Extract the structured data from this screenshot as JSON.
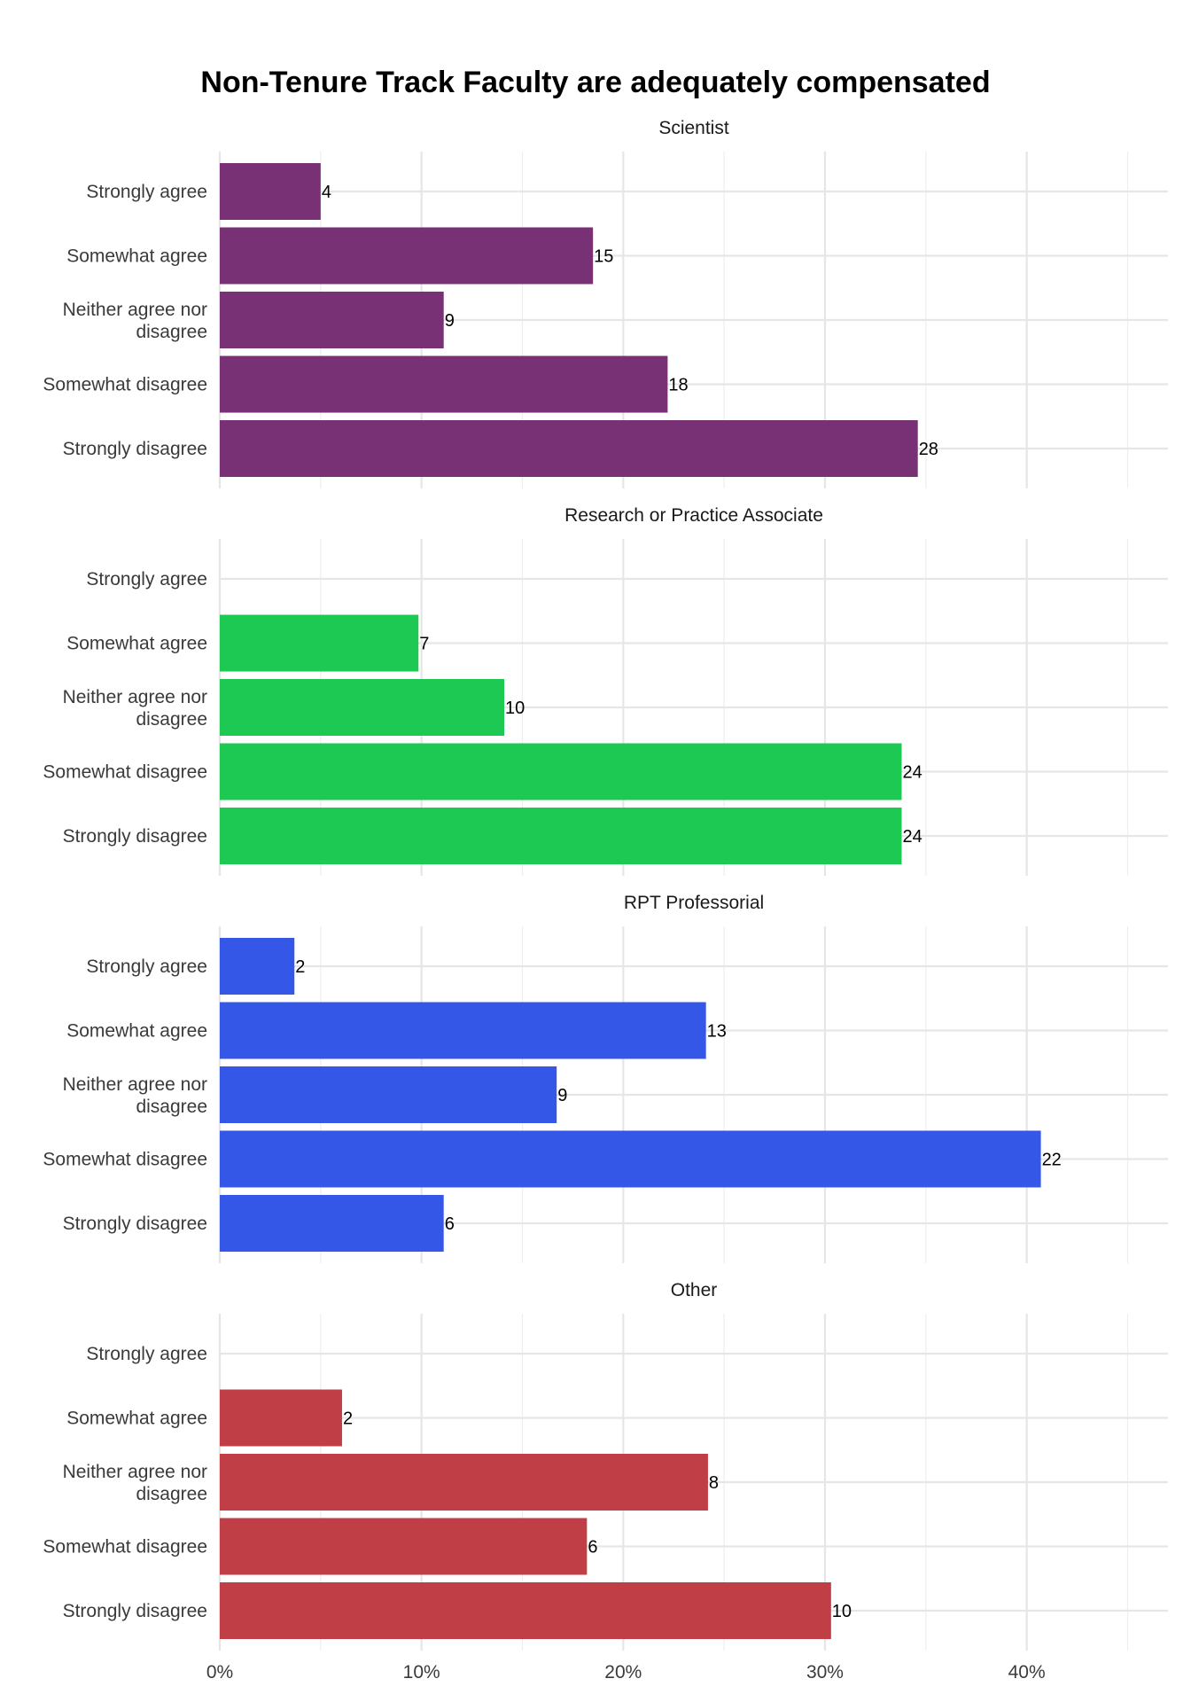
{
  "chart_data": {
    "type": "bar",
    "orientation": "horizontal",
    "title": "Non-Tenure Track Faculty are adequately compensated",
    "categories": [
      "Strongly agree",
      "Somewhat agree",
      "Neither agree nor disagree",
      "Somewhat disagree",
      "Strongly disagree"
    ],
    "xlim": [
      0,
      0.47
    ],
    "x_ticks": [
      0,
      0.1,
      0.2,
      0.3,
      0.4
    ],
    "x_tick_labels": [
      "0%",
      "10%",
      "20%",
      "30%",
      "40%"
    ],
    "grid": true,
    "facets": [
      {
        "name": "Scientist",
        "color": "#773174",
        "percent": [
          0.05,
          0.185,
          0.111,
          0.222,
          0.346
        ],
        "counts": [
          4,
          15,
          9,
          18,
          28
        ]
      },
      {
        "name": "Research or Practice Associate",
        "color": "#1dc853",
        "percent": [
          0,
          0.0985,
          0.141,
          0.338,
          0.338
        ],
        "counts": [
          null,
          7,
          10,
          24,
          24
        ]
      },
      {
        "name": "RPT Professorial",
        "color": "#3457e8",
        "percent": [
          0.037,
          0.241,
          0.167,
          0.407,
          0.111
        ],
        "counts": [
          2,
          13,
          9,
          22,
          6
        ]
      },
      {
        "name": "Other",
        "color": "#c03e45",
        "percent": [
          0,
          0.0606,
          0.242,
          0.182,
          0.303
        ],
        "counts": [
          null,
          2,
          8,
          6,
          10
        ]
      }
    ]
  }
}
